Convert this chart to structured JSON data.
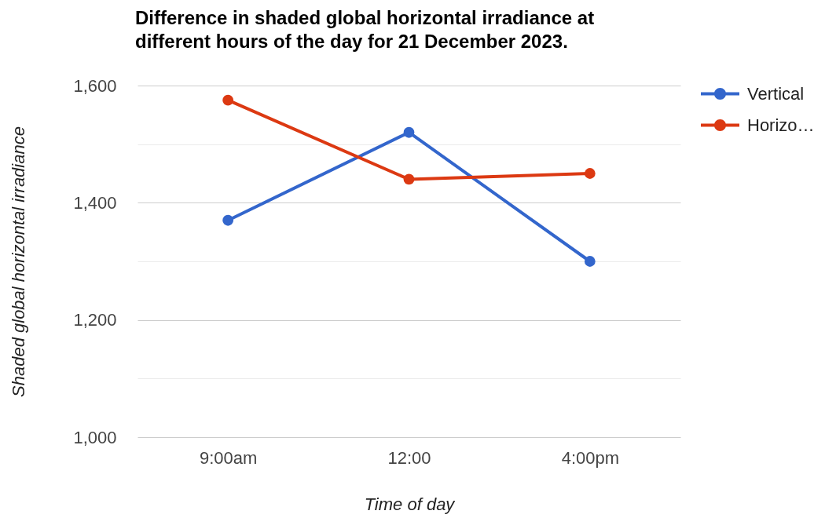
{
  "chart_data": {
    "type": "line",
    "title": "Difference in shaded global horizontal irradiance at different hours of the day for 21 December 2023.",
    "xlabel": "Time of day",
    "ylabel": "Shaded global horizontal irradiance",
    "categories": [
      "9:00am",
      "12:00",
      "4:00pm"
    ],
    "series": [
      {
        "name": "Vertical",
        "color": "#3366cc",
        "values": [
          1370,
          1520,
          1300
        ]
      },
      {
        "name": "Horizo…",
        "color": "#dc3912",
        "values": [
          1575,
          1440,
          1450
        ]
      }
    ],
    "ylim": [
      1000,
      1600
    ],
    "yticks": [
      {
        "value": 1000,
        "label": "1,000"
      },
      {
        "value": 1100,
        "label": null
      },
      {
        "value": 1200,
        "label": "1,200"
      },
      {
        "value": 1300,
        "label": null
      },
      {
        "value": 1400,
        "label": "1,400"
      },
      {
        "value": 1500,
        "label": null
      },
      {
        "value": 1600,
        "label": "1,600"
      }
    ],
    "grid": "y",
    "legend": "right",
    "marker": "circle",
    "line_style": "solid"
  }
}
